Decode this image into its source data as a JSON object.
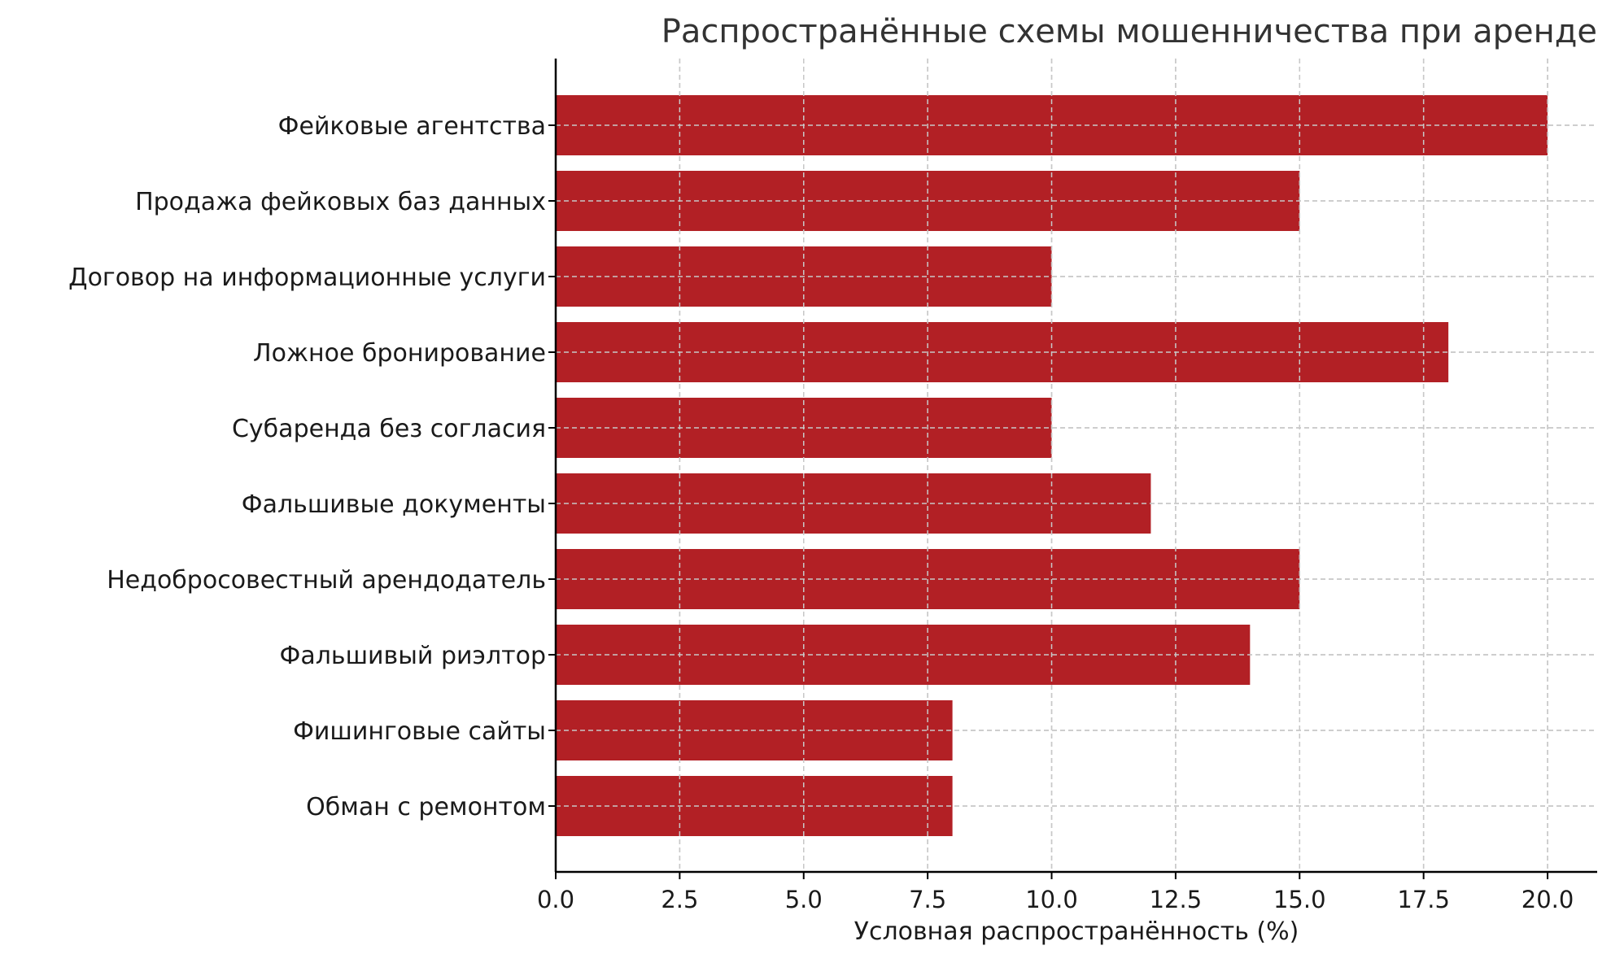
{
  "chart_data": {
    "type": "bar",
    "orientation": "horizontal",
    "title": "Распространённые схемы мошенничества при аренде",
    "xlabel": "Условная распространённость (%)",
    "ylabel": "",
    "categories": [
      "Фейковые агентства",
      "Продажа фейковых баз данных",
      "Договор на информационные услуги",
      "Ложное бронирование",
      "Субаренда без согласия",
      "Фальшивые документы",
      "Недобросовестный арендодатель",
      "Фальшивый риэлтор",
      "Фишинговые сайты",
      "Обман с ремонтом"
    ],
    "values": [
      20,
      15,
      10,
      18,
      10,
      12,
      15,
      14,
      8,
      8
    ],
    "xlim": [
      0,
      21
    ],
    "xticks": [
      "0.0",
      "2.5",
      "5.0",
      "7.5",
      "10.0",
      "12.5",
      "15.0",
      "17.5",
      "20.0"
    ],
    "grid": true,
    "legend": "none",
    "colors": {
      "bar": "#b22025",
      "grid": "#c8c8c8",
      "axis": "#000000",
      "title": "#333333",
      "text": "#1a1a1a"
    }
  }
}
